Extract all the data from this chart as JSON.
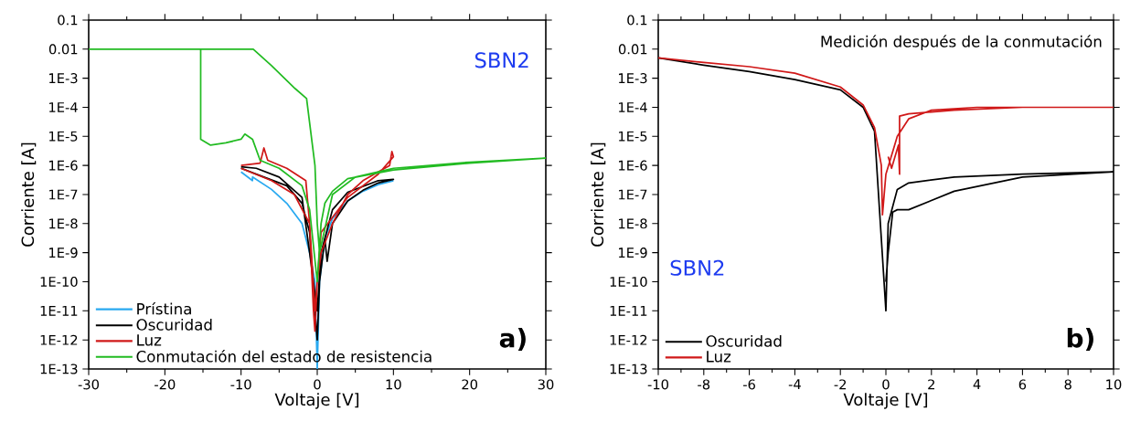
{
  "chart_data": [
    {
      "type": "line",
      "xlabel": "Voltaje [V]",
      "ylabel": "Corriente [A]",
      "log": "y",
      "legend": "bottom left",
      "marker": "none",
      "line_style": "solid",
      "grid": false,
      "annotations": [
        "SBN2",
        "a)"
      ],
      "xlim": [
        -30,
        30
      ],
      "xticks": [
        -30,
        -20,
        -10,
        0,
        10,
        20,
        30
      ],
      "ylim": [
        1e-13,
        0.1
      ],
      "yticks": [
        {
          "value": 0.1,
          "label": "0.1"
        },
        {
          "value": 0.01,
          "label": "0.01"
        },
        {
          "value": 0.001,
          "label": "1E-3"
        },
        {
          "value": 0.0001,
          "label": "1E-4"
        },
        {
          "value": 1e-05,
          "label": "1E-5"
        },
        {
          "value": 1e-06,
          "label": "1E-6"
        },
        {
          "value": 1e-07,
          "label": "1E-7"
        },
        {
          "value": 1e-08,
          "label": "1E-8"
        },
        {
          "value": 1e-09,
          "label": "1E-9"
        },
        {
          "value": 1e-10,
          "label": "1E-10"
        },
        {
          "value": 1e-11,
          "label": "1E-11"
        },
        {
          "value": 1e-12,
          "label": "1E-12"
        },
        {
          "value": 1e-13,
          "label": "1E-13"
        }
      ],
      "series": [
        {
          "name": "Prístina",
          "color": "#29a9f0",
          "x": [
            -10,
            -8.5,
            -8.5,
            -6,
            -4,
            -2,
            -1,
            -0.3,
            0,
            0.3,
            1,
            2,
            4,
            6,
            8,
            10
          ],
          "values": [
            6e-07,
            3e-07,
            4e-07,
            1.5e-07,
            5e-08,
            1e-08,
            1e-09,
            1e-10,
            1e-13,
            1e-10,
            3e-09,
            1.5e-08,
            6e-08,
            1.3e-07,
            2.2e-07,
            3e-07
          ]
        },
        {
          "name": "Oscuridad",
          "color": "#000000",
          "x": [
            -10,
            -7,
            -4,
            -2,
            -1,
            -0.3,
            0,
            0.3,
            1,
            1.3,
            2,
            4,
            6,
            8,
            10,
            8,
            4,
            2,
            0.5,
            0,
            -1,
            -2,
            -5,
            -8,
            -10
          ],
          "values": [
            8e-07,
            4e-07,
            2e-07,
            5e-08,
            5e-09,
            1e-11,
            1e-12,
            1e-10,
            3e-09,
            5e-10,
            1e-08,
            6e-08,
            1.4e-07,
            2.5e-07,
            3.3e-07,
            3e-07,
            1.2e-07,
            3e-08,
            1e-09,
            1e-11,
            1e-09,
            8e-08,
            4e-07,
            8e-07,
            9e-07
          ]
        },
        {
          "name": "Luz",
          "color": "#d01818",
          "x": [
            -10,
            -7.5,
            -7,
            -6.5,
            -4,
            -1.5,
            -1,
            -0.5,
            -0.3,
            0,
            0.5,
            2,
            4,
            6,
            8,
            9.5,
            9.8,
            10,
            8,
            4,
            0.5,
            -0.3,
            -1,
            -3,
            -6,
            -10
          ],
          "values": [
            1e-06,
            1.2e-06,
            4e-06,
            1.5e-06,
            8e-07,
            3e-07,
            1e-08,
            1e-11,
            2e-12,
            1e-10,
            1e-09,
            1e-08,
            1e-07,
            3e-07,
            6e-07,
            1e-06,
            3e-06,
            2e-06,
            5e-07,
            8e-08,
            5e-09,
            1e-11,
            1e-08,
            1e-07,
            3e-07,
            8e-07
          ]
        },
        {
          "name": "Conmutación del estado de resistencia",
          "color": "#22bb22",
          "x": [
            -30,
            -15.3,
            -15.3,
            -14,
            -12,
            -10,
            -9.5,
            -8.5,
            -7.5,
            -5,
            -2,
            -1,
            0,
            0.5,
            1,
            2,
            4,
            10,
            20,
            30,
            20,
            10,
            5,
            2,
            0.3,
            0,
            -0.3,
            -1.4,
            -2.9,
            -6,
            -8.4,
            -15.3
          ],
          "values": [
            0.01,
            0.01,
            8e-06,
            5e-06,
            6e-06,
            8e-06,
            1.2e-05,
            8e-06,
            1.5e-06,
            8e-07,
            2e-07,
            3e-08,
            1e-10,
            1e-08,
            5e-08,
            1.3e-07,
            3.5e-07,
            7e-07,
            1.2e-06,
            1.8e-06,
            1.3e-06,
            8e-07,
            4e-07,
            1e-07,
            1e-09,
            1e-08,
            1e-06,
            0.0002,
            0.00044,
            0.0027,
            0.01,
            0.01
          ]
        }
      ]
    },
    {
      "type": "line",
      "xlabel": "Voltaje [V]",
      "ylabel": "Corriente [A]",
      "log": "y",
      "legend": "bottom left",
      "marker": "none",
      "line_style": "solid",
      "grid": false,
      "annotations": [
        "Medición después de la conmutación",
        "SBN2",
        "b)"
      ],
      "xlim": [
        -10,
        10
      ],
      "xticks": [
        -10,
        -8,
        -6,
        -4,
        -2,
        0,
        2,
        4,
        6,
        8,
        10
      ],
      "ylim": [
        1e-13,
        0.1
      ],
      "yticks": [
        {
          "value": 0.1,
          "label": "0.1"
        },
        {
          "value": 0.01,
          "label": "0.01"
        },
        {
          "value": 0.001,
          "label": "1E-3"
        },
        {
          "value": 0.0001,
          "label": "1E-4"
        },
        {
          "value": 1e-05,
          "label": "1E-5"
        },
        {
          "value": 1e-06,
          "label": "1E-6"
        },
        {
          "value": 1e-07,
          "label": "1E-7"
        },
        {
          "value": 1e-08,
          "label": "1E-8"
        },
        {
          "value": 1e-09,
          "label": "1E-9"
        },
        {
          "value": 1e-10,
          "label": "1E-10"
        },
        {
          "value": 1e-11,
          "label": "1E-11"
        },
        {
          "value": 1e-12,
          "label": "1E-12"
        },
        {
          "value": 1e-13,
          "label": "1E-13"
        }
      ],
      "series": [
        {
          "name": "Oscuridad",
          "color": "#000000",
          "x": [
            -10,
            -8,
            -6,
            -4,
            -2,
            -1,
            -0.5,
            -0.2,
            0,
            0.1,
            0.5,
            1,
            3,
            6,
            10,
            6,
            3,
            1,
            0.5,
            0.3,
            0.1,
            0
          ],
          "values": [
            0.005,
            0.0028,
            0.0017,
            0.0009,
            0.0004,
            0.0001,
            1.5e-05,
            null,
            1e-11,
            1e-08,
            1.5e-07,
            2.5e-07,
            4e-07,
            5e-07,
            6e-07,
            4e-07,
            1.3e-07,
            3e-08,
            3e-08,
            2.5e-08,
            1e-09,
            1e-10
          ]
        },
        {
          "name": "Luz",
          "color": "#d01818",
          "x": [
            -10,
            -8,
            -6,
            -4,
            -2,
            -1,
            -0.5,
            -0.2,
            -0.15,
            0,
            0.3,
            0.5,
            1,
            2,
            4,
            10,
            6,
            3,
            1,
            0.6,
            0.6,
            0.55,
            0.4,
            0.25,
            0.1
          ],
          "values": [
            0.005,
            0.0035,
            0.0025,
            0.0015,
            0.0005,
            0.00012,
            2e-05,
            1e-06,
            2e-08,
            5e-07,
            3e-06,
            1e-05,
            4e-05,
            8e-05,
            0.0001,
            0.0001,
            0.0001,
            8e-05,
            6e-05,
            5e-05,
            5e-07,
            5e-06,
            2e-06,
            8e-07,
            2e-06
          ]
        }
      ]
    }
  ]
}
